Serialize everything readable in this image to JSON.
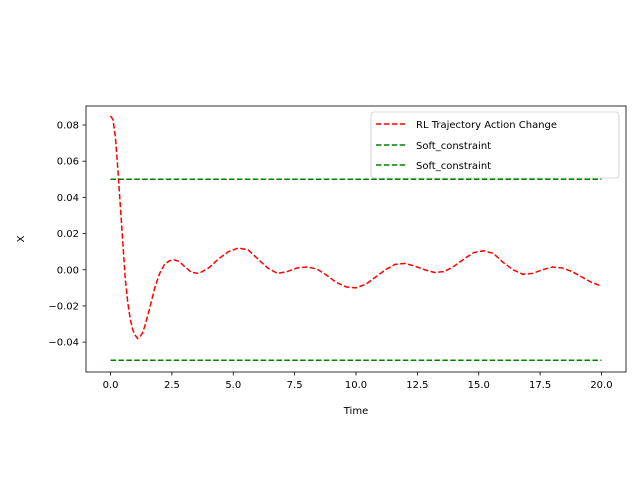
{
  "chart_data": {
    "type": "line",
    "xlabel": "Time",
    "ylabel": "X",
    "xlim": [
      -1.0,
      21.0
    ],
    "ylim": [
      -0.0565,
      0.0905
    ],
    "xticks": [
      0.0,
      2.5,
      5.0,
      7.5,
      10.0,
      12.5,
      15.0,
      17.5,
      20.0
    ],
    "xtick_labels": [
      "0.0",
      "2.5",
      "5.0",
      "7.5",
      "10.0",
      "12.5",
      "15.0",
      "17.5",
      "20.0"
    ],
    "yticks": [
      -0.04,
      -0.02,
      0.0,
      0.02,
      0.04,
      0.06,
      0.08
    ],
    "ytick_labels": [
      "−0.04",
      "−0.02",
      "0.00",
      "0.02",
      "0.04",
      "0.06",
      "0.08"
    ],
    "grid": false,
    "legend_position": "top-right",
    "series": [
      {
        "name": "RL Trajectory Action Change",
        "color": "#ff0000",
        "style": "dashed",
        "x": [
          0.0,
          0.1,
          0.2,
          0.3,
          0.4,
          0.5,
          0.6,
          0.7,
          0.8,
          0.9,
          1.0,
          1.1,
          1.2,
          1.3,
          1.4,
          1.5,
          1.6,
          1.8,
          2.0,
          2.2,
          2.4,
          2.6,
          2.8,
          3.0,
          3.3,
          3.6,
          4.0,
          4.4,
          4.8,
          5.2,
          5.6,
          6.0,
          6.4,
          6.8,
          7.2,
          7.6,
          8.0,
          8.4,
          8.8,
          9.2,
          9.6,
          10.0,
          10.4,
          10.8,
          11.2,
          11.6,
          12.0,
          12.4,
          12.8,
          13.2,
          13.6,
          14.0,
          14.4,
          14.8,
          15.2,
          15.6,
          16.0,
          16.4,
          16.8,
          17.2,
          17.6,
          18.0,
          18.4,
          18.8,
          19.2,
          19.6,
          20.0
        ],
        "values": [
          0.085,
          0.083,
          0.073,
          0.055,
          0.035,
          0.015,
          -0.005,
          -0.018,
          -0.027,
          -0.033,
          -0.036,
          -0.038,
          -0.037,
          -0.035,
          -0.031,
          -0.026,
          -0.021,
          -0.01,
          -0.002,
          0.003,
          0.005,
          0.0055,
          0.0045,
          0.002,
          -0.0015,
          -0.002,
          0.001,
          0.006,
          0.01,
          0.012,
          0.011,
          0.006,
          0.001,
          -0.002,
          -0.001,
          0.001,
          0.0015,
          0.0005,
          -0.003,
          -0.007,
          -0.0095,
          -0.01,
          -0.008,
          -0.004,
          0.0,
          0.003,
          0.0035,
          0.002,
          0.0,
          -0.0015,
          -0.001,
          0.002,
          0.006,
          0.0095,
          0.0105,
          0.009,
          0.004,
          0.0,
          -0.0025,
          -0.002,
          0.0,
          0.0015,
          0.001,
          -0.001,
          -0.004,
          -0.007,
          -0.009
        ]
      },
      {
        "name": "Soft_constraint",
        "color": "#008000",
        "style": "dashed",
        "x": [
          0.0,
          20.0
        ],
        "values": [
          0.05,
          0.05
        ]
      },
      {
        "name": "Soft_constraint",
        "color": "#008000",
        "style": "dashed",
        "x": [
          0.0,
          20.0
        ],
        "values": [
          -0.05,
          -0.05
        ]
      }
    ]
  }
}
